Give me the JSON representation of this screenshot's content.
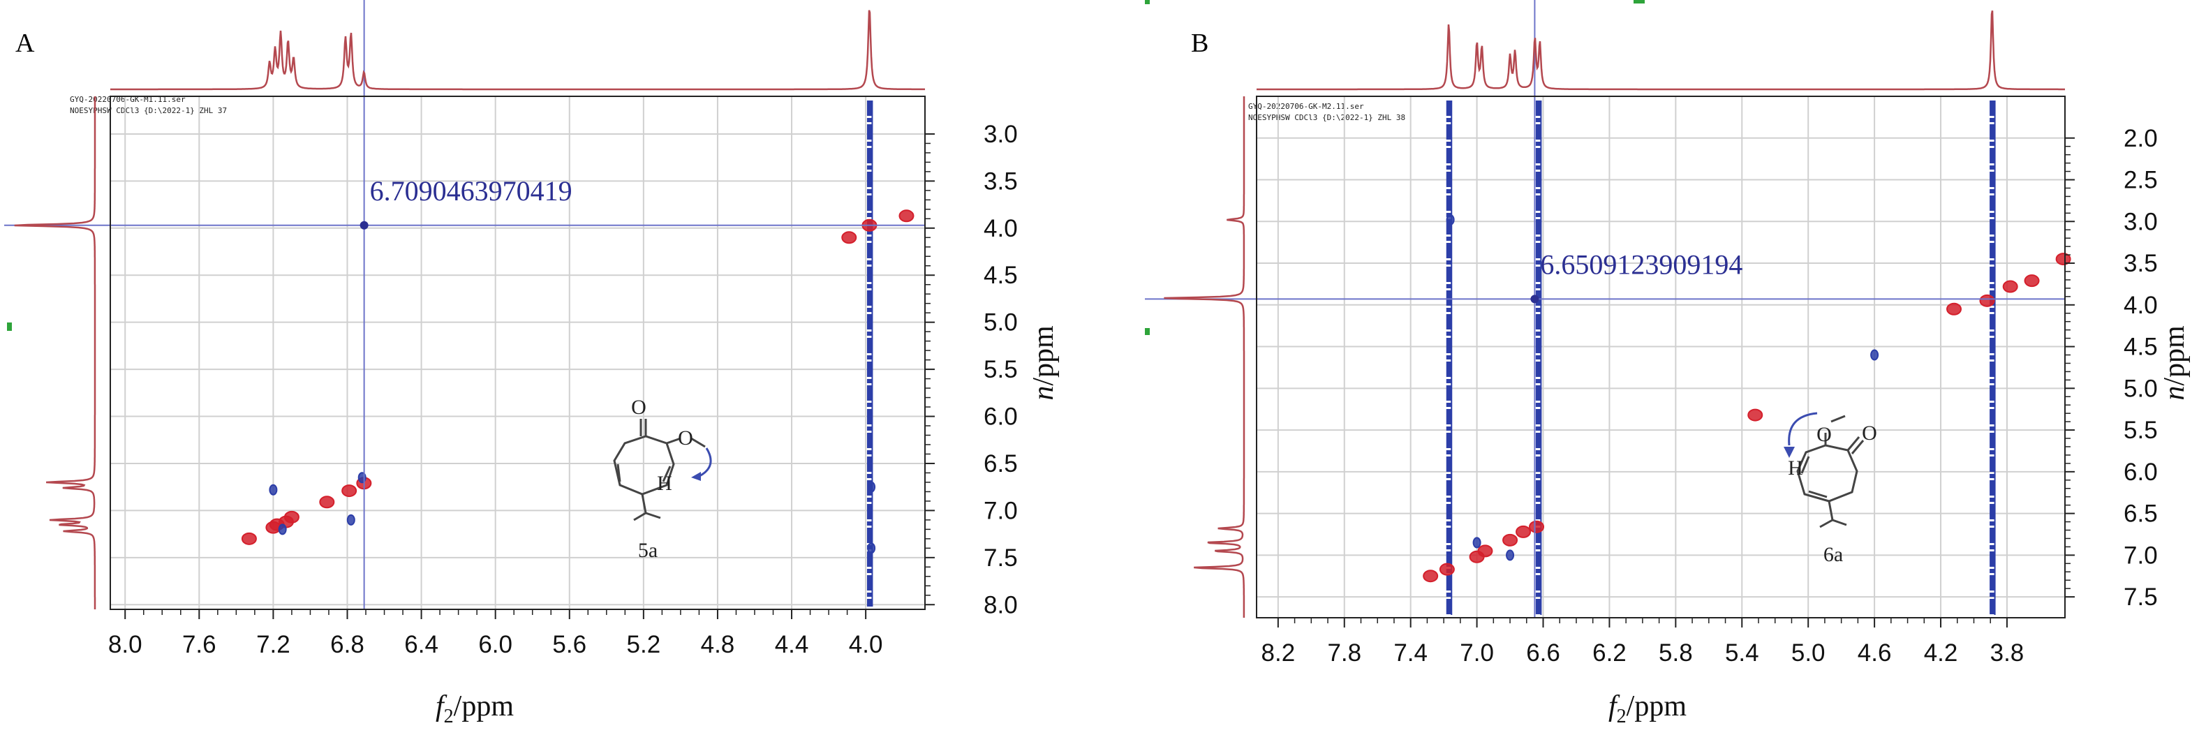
{
  "chart_data": [
    {
      "type": "scatter",
      "panel_label": "A",
      "header_lines": [
        "GYQ-20220706-GK-M1.11.ser",
        "NOESYPHSW CDCl3 {D:\\2022-1} ZHL 37"
      ],
      "xlabel_italic": "f",
      "xlabel_sub": "2",
      "xlabel_rest": "/ppm",
      "ylabel_italic": "n",
      "ylabel_rest": "/ppm",
      "xlim": [
        8.08,
        3.68
      ],
      "ylim": [
        2.6,
        8.05
      ],
      "x_ticks": [
        "8.0",
        "7.6",
        "7.2",
        "6.8",
        "6.4",
        "6.0",
        "5.6",
        "5.2",
        "4.8",
        "4.4",
        "4.0"
      ],
      "y_ticks": [
        "3.0",
        "3.5",
        "4.0",
        "4.5",
        "5.0",
        "5.5",
        "6.0",
        "6.5",
        "7.0",
        "7.5",
        "8.0"
      ],
      "grid": true,
      "crosshair": {
        "x": 6.709,
        "y": 3.97,
        "readout": "6.7090463970419"
      },
      "top_projection_peaks": [
        {
          "shift": 7.22,
          "height": 0.3
        },
        {
          "shift": 7.19,
          "height": 0.45
        },
        {
          "shift": 7.16,
          "height": 0.65
        },
        {
          "shift": 7.12,
          "height": 0.55
        },
        {
          "shift": 7.09,
          "height": 0.35
        },
        {
          "shift": 6.81,
          "height": 0.6
        },
        {
          "shift": 6.78,
          "height": 0.65
        },
        {
          "shift": 6.71,
          "height": 0.2
        },
        {
          "shift": 3.98,
          "height": 1.0
        }
      ],
      "left_projection_peaks": [
        {
          "shift": 3.97,
          "height": 0.95
        },
        {
          "shift": 6.7,
          "height": 0.55
        },
        {
          "shift": 6.76,
          "height": 0.35
        },
        {
          "shift": 7.1,
          "height": 0.5
        },
        {
          "shift": 7.15,
          "height": 0.4
        },
        {
          "shift": 7.22,
          "height": 0.35
        }
      ],
      "cross_peaks": [
        {
          "x": 7.33,
          "y": 7.3,
          "phase": "positive"
        },
        {
          "x": 7.2,
          "y": 7.18,
          "phase": "positive"
        },
        {
          "x": 7.18,
          "y": 7.15,
          "phase": "positive"
        },
        {
          "x": 7.13,
          "y": 7.12,
          "phase": "positive"
        },
        {
          "x": 7.1,
          "y": 7.07,
          "phase": "positive"
        },
        {
          "x": 6.79,
          "y": 6.79,
          "phase": "positive"
        },
        {
          "x": 6.71,
          "y": 6.71,
          "phase": "positive"
        },
        {
          "x": 6.91,
          "y": 6.91,
          "phase": "positive"
        },
        {
          "x": 3.98,
          "y": 3.97,
          "phase": "positive"
        },
        {
          "x": 3.78,
          "y": 3.87,
          "phase": "positive"
        },
        {
          "x": 4.09,
          "y": 4.1,
          "phase": "positive"
        },
        {
          "x": 7.2,
          "y": 6.78,
          "phase": "negative"
        },
        {
          "x": 7.15,
          "y": 7.2,
          "phase": "negative"
        },
        {
          "x": 6.78,
          "y": 7.1,
          "phase": "negative"
        },
        {
          "x": 6.72,
          "y": 6.65,
          "phase": "negative"
        },
        {
          "x": 3.97,
          "y": 6.75,
          "phase": "negative"
        },
        {
          "x": 3.97,
          "y": 7.4,
          "phase": "negative"
        }
      ],
      "vertical_streak": {
        "x": 3.98,
        "phase": "negative"
      },
      "compound_label": "5a",
      "structure_atoms": {
        "carbonyl": "O",
        "ether": "O",
        "hydrogen": "H"
      }
    },
    {
      "type": "scatter",
      "panel_label": "B",
      "header_lines": [
        "GYQ-20220706-GK-M2.11.ser",
        "NOESYPHSW CDCl3 {D:\\2022-1} ZHL 38"
      ],
      "xlabel_italic": "f",
      "xlabel_sub": "2",
      "xlabel_rest": "/ppm",
      "ylabel_italic": "n",
      "ylabel_rest": "/ppm",
      "xlim": [
        8.33,
        3.45
      ],
      "ylim": [
        1.5,
        7.75
      ],
      "x_ticks": [
        "8.2",
        "7.8",
        "7.4",
        "7.0",
        "6.6",
        "6.2",
        "5.8",
        "5.4",
        "5.0",
        "4.6",
        "4.2",
        "3.8"
      ],
      "y_ticks": [
        "2.0",
        "2.5",
        "3.0",
        "3.5",
        "4.0",
        "4.5",
        "5.0",
        "5.5",
        "6.0",
        "6.5",
        "7.0",
        "7.5"
      ],
      "grid": true,
      "crosshair": {
        "x": 6.651,
        "y": 3.93,
        "readout": "6.6509123909194"
      },
      "top_projection_peaks": [
        {
          "shift": 7.17,
          "height": 0.8
        },
        {
          "shift": 7.0,
          "height": 0.55
        },
        {
          "shift": 6.97,
          "height": 0.5
        },
        {
          "shift": 6.8,
          "height": 0.4
        },
        {
          "shift": 6.77,
          "height": 0.45
        },
        {
          "shift": 6.65,
          "height": 0.6
        },
        {
          "shift": 6.62,
          "height": 0.55
        },
        {
          "shift": 3.89,
          "height": 1.0
        }
      ],
      "left_projection_peaks": [
        {
          "shift": 3.92,
          "height": 0.95
        },
        {
          "shift": 2.98,
          "height": 0.2
        },
        {
          "shift": 6.68,
          "height": 0.3
        },
        {
          "shift": 6.85,
          "height": 0.45
        },
        {
          "shift": 6.95,
          "height": 0.35
        },
        {
          "shift": 7.15,
          "height": 0.6
        }
      ],
      "cross_peaks": [
        {
          "x": 7.28,
          "y": 7.25,
          "phase": "positive"
        },
        {
          "x": 7.18,
          "y": 7.17,
          "phase": "positive"
        },
        {
          "x": 7.0,
          "y": 7.02,
          "phase": "positive"
        },
        {
          "x": 6.95,
          "y": 6.95,
          "phase": "positive"
        },
        {
          "x": 6.8,
          "y": 6.82,
          "phase": "positive"
        },
        {
          "x": 6.72,
          "y": 6.72,
          "phase": "positive"
        },
        {
          "x": 6.64,
          "y": 6.66,
          "phase": "positive"
        },
        {
          "x": 5.32,
          "y": 5.32,
          "phase": "positive"
        },
        {
          "x": 3.92,
          "y": 3.95,
          "phase": "positive"
        },
        {
          "x": 3.78,
          "y": 3.78,
          "phase": "positive"
        },
        {
          "x": 3.65,
          "y": 3.71,
          "phase": "positive"
        },
        {
          "x": 4.12,
          "y": 4.05,
          "phase": "positive"
        },
        {
          "x": 3.46,
          "y": 3.45,
          "phase": "positive"
        },
        {
          "x": 7.16,
          "y": 2.98,
          "phase": "negative"
        },
        {
          "x": 7.0,
          "y": 6.85,
          "phase": "negative"
        },
        {
          "x": 6.8,
          "y": 7.0,
          "phase": "negative"
        },
        {
          "x": 4.6,
          "y": 4.6,
          "phase": "negative"
        }
      ],
      "vertical_streaks": [
        {
          "x": 7.17,
          "phase": "negative"
        },
        {
          "x": 6.63,
          "phase": "negative"
        },
        {
          "x": 3.89,
          "phase": "negative"
        }
      ],
      "compound_label": "6a",
      "structure_atoms": {
        "carbonyl": "O",
        "ether": "O",
        "hydrogen": "H"
      }
    }
  ],
  "colors": {
    "projection": "#b4484f",
    "positive_peak": "#d4202c",
    "negative_peak": "#2c3ea8",
    "crosshair": "#6d74c9",
    "readout": "#2b2f92",
    "grid": "#d0d0d0",
    "axis": "#222222",
    "marker": "#2ea43a"
  }
}
